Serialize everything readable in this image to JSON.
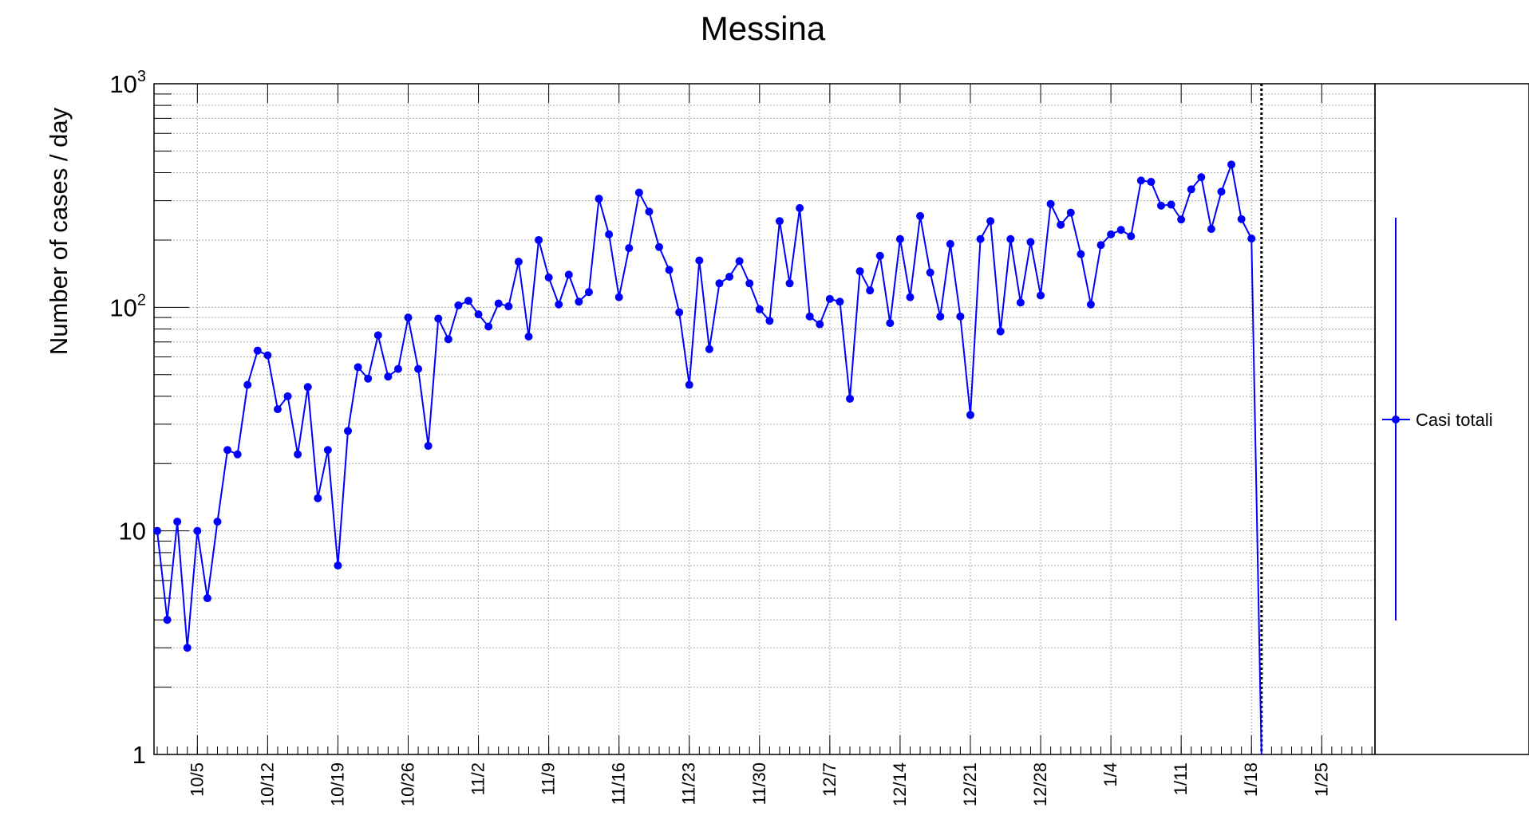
{
  "chart_data": {
    "type": "line",
    "title": "Messina",
    "ylabel": "Number of cases / day",
    "xlabel": "",
    "yscale": "log",
    "ylim": [
      1,
      1000
    ],
    "y_tick_labels": [
      {
        "value": 1,
        "base": "1",
        "exp": ""
      },
      {
        "value": 10,
        "base": "10",
        "exp": ""
      },
      {
        "value": 100,
        "base": "10",
        "exp": "2"
      },
      {
        "value": 1000,
        "base": "10",
        "exp": "3"
      }
    ],
    "x_tick_labels": [
      {
        "day": 4,
        "label": "10/5"
      },
      {
        "day": 11,
        "label": "10/12"
      },
      {
        "day": 18,
        "label": "10/19"
      },
      {
        "day": 25,
        "label": "10/26"
      },
      {
        "day": 32,
        "label": "11/2"
      },
      {
        "day": 39,
        "label": "11/9"
      },
      {
        "day": 46,
        "label": "11/16"
      },
      {
        "day": 53,
        "label": "11/23"
      },
      {
        "day": 60,
        "label": "11/30"
      },
      {
        "day": 67,
        "label": "12/7"
      },
      {
        "day": 74,
        "label": "12/14"
      },
      {
        "day": 81,
        "label": "12/21"
      },
      {
        "day": 88,
        "label": "12/28"
      },
      {
        "day": 95,
        "label": "1/4"
      },
      {
        "day": 102,
        "label": "1/11"
      },
      {
        "day": 109,
        "label": "1/18"
      },
      {
        "day": 116,
        "label": "1/25"
      }
    ],
    "x_start_date": "10/1",
    "grid": true,
    "legend_position": "right",
    "vertical_marker_day": 110,
    "series": [
      {
        "name": "Casi totali",
        "color": "#0000ff",
        "values": [
          10,
          4,
          11,
          3,
          10,
          5,
          11,
          23,
          22,
          45,
          64,
          61,
          35,
          40,
          22,
          44,
          14,
          23,
          7,
          28,
          54,
          48,
          75,
          49,
          53,
          90,
          53,
          24,
          89,
          72,
          102,
          107,
          93,
          82,
          104,
          101,
          160,
          74,
          200,
          136,
          103,
          140,
          106,
          117,
          306,
          212,
          111,
          184,
          326,
          268,
          186,
          147,
          95,
          45,
          162,
          65,
          128,
          137,
          161,
          128,
          98,
          87,
          243,
          128,
          278,
          91,
          84,
          109,
          106,
          39,
          145,
          119,
          170,
          85,
          202,
          111,
          256,
          143,
          91,
          192,
          91,
          33,
          202,
          243,
          78,
          202,
          105,
          196,
          113,
          290,
          234,
          265,
          173,
          103,
          190,
          212,
          222,
          208,
          369,
          364,
          285,
          288,
          247,
          337,
          382,
          224,
          329,
          435,
          248,
          203,
          1
        ]
      }
    ]
  }
}
